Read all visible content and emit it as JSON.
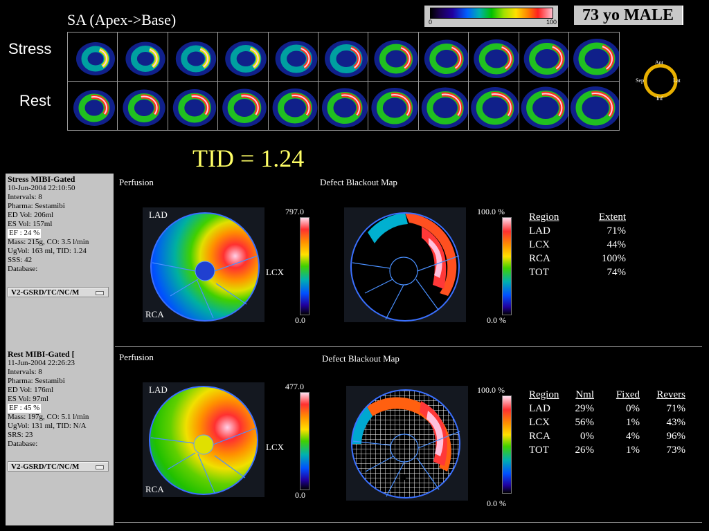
{
  "sa_title": "SA (Apex->Base)",
  "patient": "73 yo MALE",
  "scale_min": "0",
  "scale_max": "100",
  "row_labels": {
    "stress": "Stress",
    "rest": "Rest"
  },
  "orientation": {
    "ant": "Ant",
    "lat": "Lat",
    "inf": "Inf",
    "sep": "Sep"
  },
  "tid": "TID = 1.24",
  "stress_panel": {
    "title": "Stress MIBI-Gated",
    "lines": [
      "10-Jun-2004 22:10:50",
      "Intervals: 8",
      "Pharma: Sestamibi",
      "ED Vol:  206ml",
      "ES Vol:  157ml"
    ],
    "ef": "EF  : 24 %",
    "lines2": [
      "Mass: 215g, CO: 3.5 l/min",
      "UgVol:  163 ml,  TID: 1.24",
      "SSS: 42",
      "Database:"
    ],
    "database": "V2-GSRD/TC/NC/M"
  },
  "rest_panel": {
    "title": "Rest MIBI-Gated [",
    "lines": [
      "11-Jun-2004 22:26:23",
      "Intervals: 8",
      "Pharma: Sestamibi",
      "ED Vol:  176ml",
      "ES Vol:  97ml"
    ],
    "ef": "EF  : 45 %",
    "lines2": [
      "Mass: 197g, CO: 5.1 l/min",
      "UgVol:  131 ml,  TID: N/A",
      "SRS: 23",
      "Database:"
    ],
    "database": "V2-GSRD/TC/NC/M"
  },
  "stress_maps": {
    "perfusion_title": "Perfusion",
    "defect_title": "Defect Blackout Map",
    "lad": "LAD",
    "lcx": "LCX",
    "rca": "RCA",
    "perf_max": "797.0",
    "perf_min": "0.0",
    "def_max": "100.0 %",
    "def_min": "0.0 %"
  },
  "rest_maps": {
    "perfusion_title": "Perfusion",
    "defect_title": "Defect Blackout Map",
    "lad": "LAD",
    "lcx": "LCX",
    "rca": "RCA",
    "perf_max": "477.0",
    "perf_min": "0.0",
    "def_max": "100.0 %",
    "def_min": "0.0 %"
  },
  "stress_table": {
    "headers": [
      "Region",
      "Extent"
    ],
    "rows": [
      [
        "LAD",
        "71%"
      ],
      [
        "LCX",
        "44%"
      ],
      [
        "RCA",
        "100%"
      ],
      [
        "TOT",
        "74%"
      ]
    ]
  },
  "rest_table": {
    "headers": [
      "Region",
      "Nml",
      "Fixed",
      "Revers"
    ],
    "rows": [
      [
        "LAD",
        "29%",
        "0%",
        "71%"
      ],
      [
        "LCX",
        "56%",
        "1%",
        "43%"
      ],
      [
        "RCA",
        "0%",
        "4%",
        "96%"
      ],
      [
        "TOT",
        "26%",
        "1%",
        "73%"
      ]
    ]
  },
  "colors": {
    "tid": "#ffff66",
    "panel_bg": "#c4c4c4",
    "frame": "#9a9a9a"
  }
}
